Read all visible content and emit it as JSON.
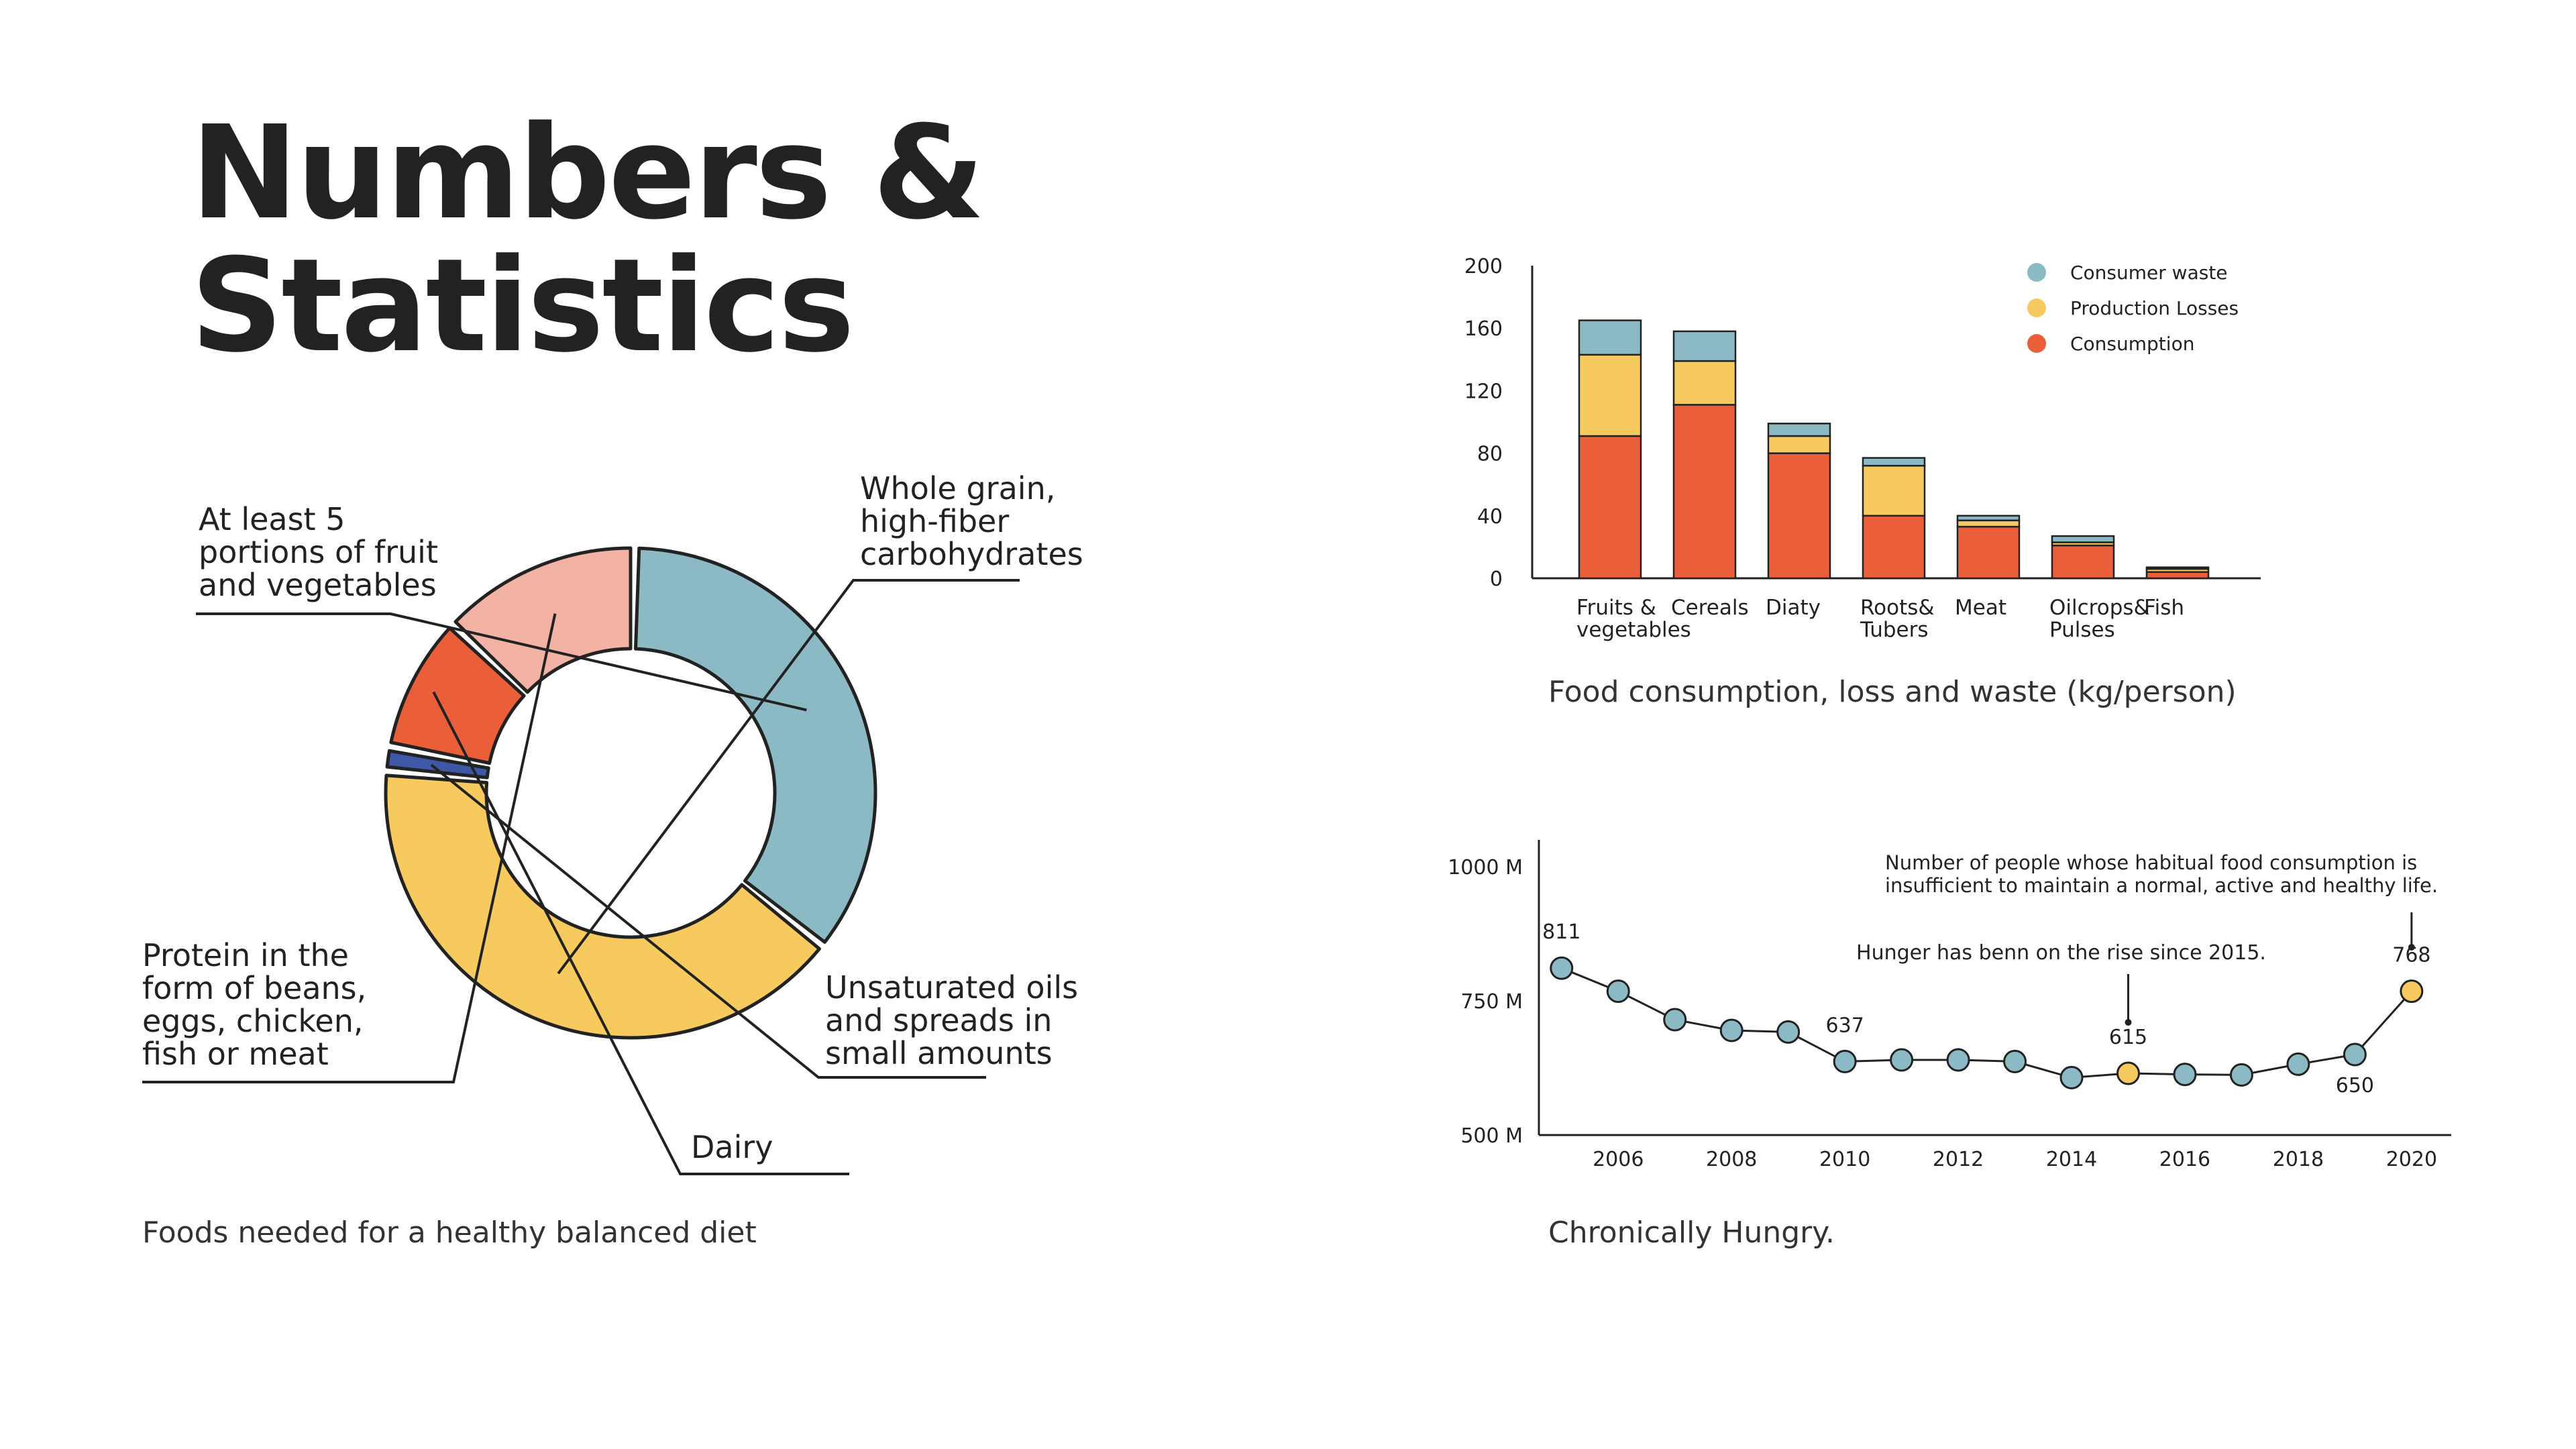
{
  "title": "Numbers &\nStatistics",
  "colors": {
    "blue": "#8BBAC4",
    "yellow": "#F7CA60",
    "orange": "#EA5E3A",
    "pink": "#F2B2A4",
    "navy": "#3E57A6",
    "dark": "#222222"
  },
  "chart_data": [
    {
      "type": "pie",
      "variant": "donut",
      "caption": "Foods needed for a healthy balanced diet",
      "slices": [
        {
          "label": "At least 5 portions of fruit and vegetables",
          "value": 33,
          "color": "#8BBAC4"
        },
        {
          "label": "Whole grain, high-fiber carbohydrates",
          "value": 38,
          "color": "#F7CA60"
        },
        {
          "label": "Unsaturated oils and spreads in small amounts",
          "value": 1,
          "color": "#3E57A6"
        },
        {
          "label": "Dairy",
          "value": 8,
          "color": "#EA5E3A"
        },
        {
          "label": "Protein in the form of beans, eggs, chicken, fish or meat",
          "value": 12,
          "color": "#F2B2A4"
        }
      ],
      "label_lines": {
        "fruit": [
          "At least 5",
          "portions of fruit",
          "and vegetables"
        ],
        "grain": [
          "Whole grain,",
          "high-fiber",
          "carbohydrates"
        ],
        "oils": [
          "Unsaturated oils",
          "and spreads in",
          "small amounts"
        ],
        "dairy": [
          "Dairy"
        ],
        "protein": [
          "Protein in the",
          "form of beans,",
          "eggs, chicken,",
          "fish or meat"
        ]
      }
    },
    {
      "type": "bar",
      "stacked": true,
      "caption": "Food consumption, loss and waste (kg/person)",
      "categories": [
        "Fruits & vegetables",
        "Cereals",
        "Diaty",
        "Roots& Tubers",
        "Meat",
        "Oilcrops& Pulses",
        "Fish"
      ],
      "category_lines": [
        [
          "Fruits &",
          "vegetables"
        ],
        [
          "Cereals"
        ],
        [
          "Diaty"
        ],
        [
          "Roots&",
          "Tubers"
        ],
        [
          "Meat"
        ],
        [
          "Oilcrops&",
          "Pulses"
        ],
        [
          "Fish"
        ]
      ],
      "series": [
        {
          "name": "Consumption",
          "color": "#EA5E3A",
          "values": [
            91,
            111,
            80,
            40,
            33,
            21,
            4
          ]
        },
        {
          "name": "Production Losses",
          "color": "#F7CA60",
          "values": [
            52,
            28,
            11,
            32,
            4,
            2,
            2
          ]
        },
        {
          "name": "Consumer waste",
          "color": "#8BBAC4",
          "values": [
            22,
            19,
            8,
            5,
            3,
            4,
            1
          ]
        }
      ],
      "legend_order": [
        "Consumer waste",
        "Production Losses",
        "Consumption"
      ],
      "legend_position": "top-right",
      "ylim": [
        0,
        200
      ],
      "yticks": [
        "0",
        "40",
        "80",
        "120",
        "160",
        "200"
      ]
    },
    {
      "type": "line",
      "caption": "Chronically Hungry.",
      "x": [
        2005,
        2006,
        2007,
        2008,
        2009,
        2010,
        2011,
        2012,
        2013,
        2014,
        2015,
        2016,
        2017,
        2018,
        2019,
        2020
      ],
      "y": [
        811,
        768,
        715,
        695,
        692,
        637,
        640,
        640,
        637,
        607,
        615,
        613,
        612,
        632,
        650,
        768
      ],
      "highlight_x": [
        2015,
        2020
      ],
      "point_color": "#8BBAC4",
      "highlight_color": "#F7CA60",
      "ylim": [
        500,
        1050
      ],
      "yticks": [
        "500 M",
        "750 M",
        "1000 M"
      ],
      "xticks": [
        "2006",
        "2008",
        "2010",
        "2012",
        "2014",
        "2016",
        "2018",
        "2020"
      ],
      "point_labels": [
        {
          "x": 2005,
          "text": "811"
        },
        {
          "x": 2010,
          "text": "637"
        },
        {
          "x": 2015,
          "text": "615"
        },
        {
          "x": 2019,
          "text": "650"
        },
        {
          "x": 2020,
          "text": "768"
        }
      ],
      "annotations": {
        "rise": "Hunger has benn on the rise since 2015.",
        "note_line1": "Number of people whose habitual food consumption is",
        "note_line2": "insufficient to maintain a normal, active and healthy life."
      }
    }
  ]
}
